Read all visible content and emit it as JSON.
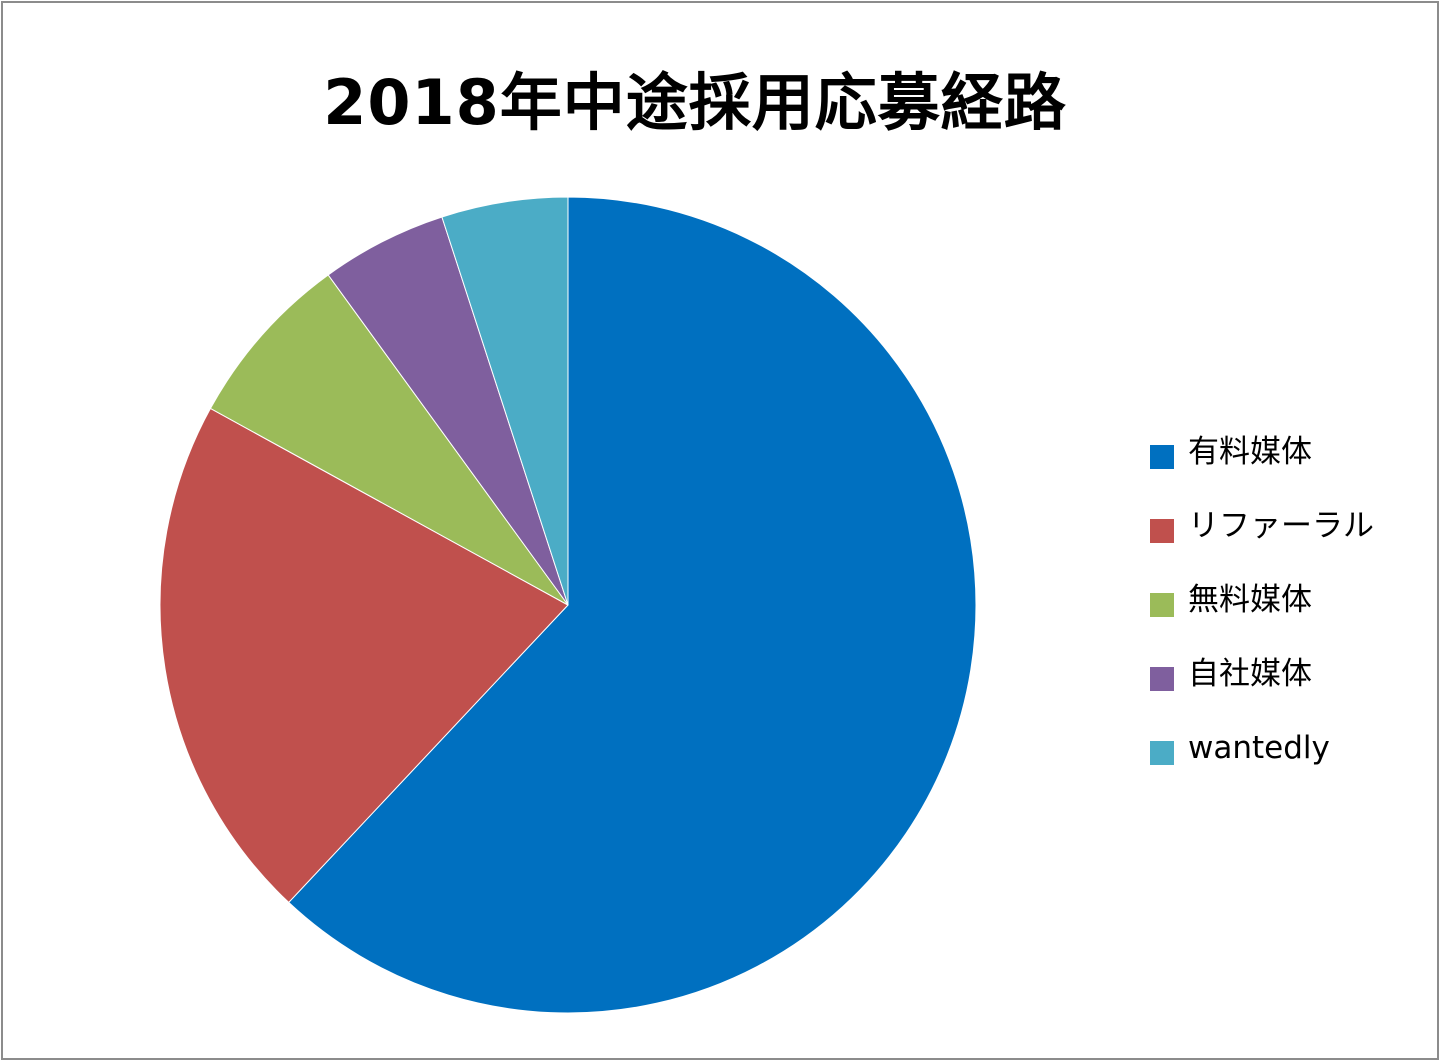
{
  "chart_data": {
    "type": "pie",
    "title": "2018年中途採用応募経路",
    "start_angle_deg": 0,
    "direction": "clockwise",
    "slices": [
      {
        "label": "有料媒体",
        "value": 62,
        "color": "#0070C0"
      },
      {
        "label": "リファーラル",
        "value": 21,
        "color": "#C0504D"
      },
      {
        "label": "無料媒体",
        "value": 7,
        "color": "#9BBB59"
      },
      {
        "label": "自社媒体",
        "value": 5,
        "color": "#7F5F9E"
      },
      {
        "label": "wantedly",
        "value": 5,
        "color": "#4BACC6"
      }
    ],
    "legend_position": "right"
  }
}
